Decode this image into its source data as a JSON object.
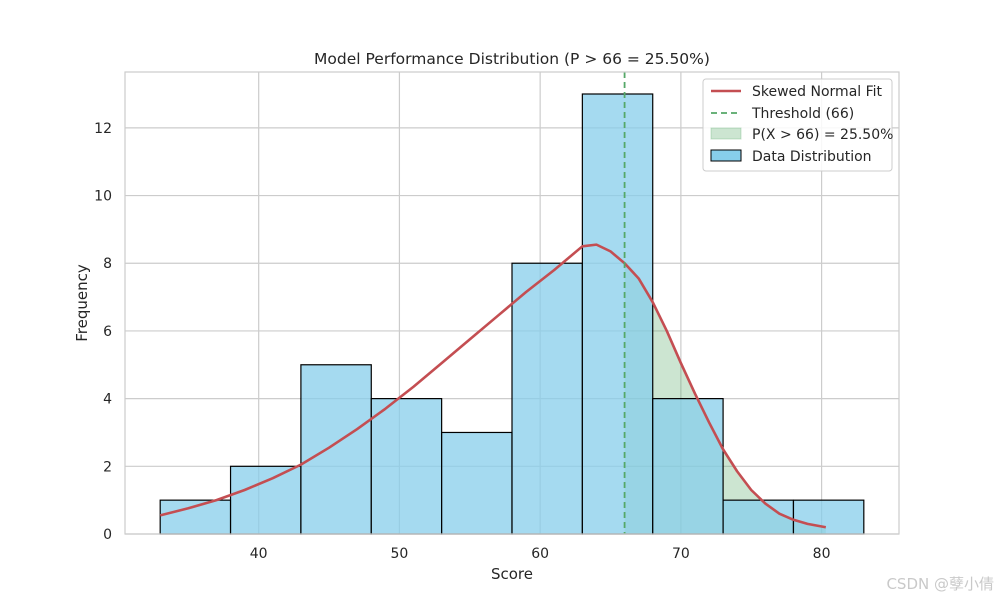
{
  "chart_data": {
    "type": "bar",
    "title": "Model Performance Distribution (P > 66 = 25.50%)",
    "xlabel": "Score",
    "ylabel": "Frequency",
    "xlim": [
      30.5,
      85.5
    ],
    "ylim": [
      0,
      13.65
    ],
    "xticks": [
      40,
      50,
      60,
      70,
      80
    ],
    "yticks": [
      0,
      2,
      4,
      6,
      8,
      10,
      12
    ],
    "grid": true,
    "legend_position": "top-right",
    "bins": [
      {
        "start": 33,
        "end": 38,
        "count": 1
      },
      {
        "start": 38,
        "end": 43,
        "count": 2
      },
      {
        "start": 43,
        "end": 48,
        "count": 5
      },
      {
        "start": 48,
        "end": 53,
        "count": 4
      },
      {
        "start": 53,
        "end": 58,
        "count": 3
      },
      {
        "start": 58,
        "end": 63,
        "count": 8
      },
      {
        "start": 63,
        "end": 68,
        "count": 13
      },
      {
        "start": 68,
        "end": 73,
        "count": 4
      },
      {
        "start": 73,
        "end": 78,
        "count": 1
      },
      {
        "start": 78,
        "end": 83,
        "count": 1
      }
    ],
    "fit_curve": {
      "x": [
        33,
        35,
        37,
        39,
        41,
        43,
        45,
        47,
        49,
        51,
        53,
        55,
        57,
        59,
        61,
        63,
        64,
        65,
        66,
        67,
        68,
        69,
        70,
        71,
        72,
        73,
        74,
        75,
        76,
        77,
        78,
        79,
        80.3
      ],
      "y": [
        0.55,
        0.76,
        1.0,
        1.3,
        1.65,
        2.05,
        2.55,
        3.1,
        3.7,
        4.35,
        5.05,
        5.75,
        6.45,
        7.15,
        7.8,
        8.5,
        8.55,
        8.35,
        8.0,
        7.55,
        6.85,
        6.0,
        5.05,
        4.15,
        3.3,
        2.5,
        1.85,
        1.3,
        0.9,
        0.6,
        0.42,
        0.3,
        0.2
      ]
    },
    "threshold": 66,
    "legend": {
      "fit": "Skewed Normal Fit",
      "threshold": "Threshold (66)",
      "area": "P(X > 66) = 25.50%",
      "hist": "Data Distribution"
    },
    "colors": {
      "bar_fill": "#87ceeb",
      "bar_edge": "#000000",
      "fit": "#c44e52",
      "threshold": "#55a868",
      "area": "#55a868",
      "grid": "#cccccc"
    }
  },
  "watermark": "CSDN @孽小倩"
}
